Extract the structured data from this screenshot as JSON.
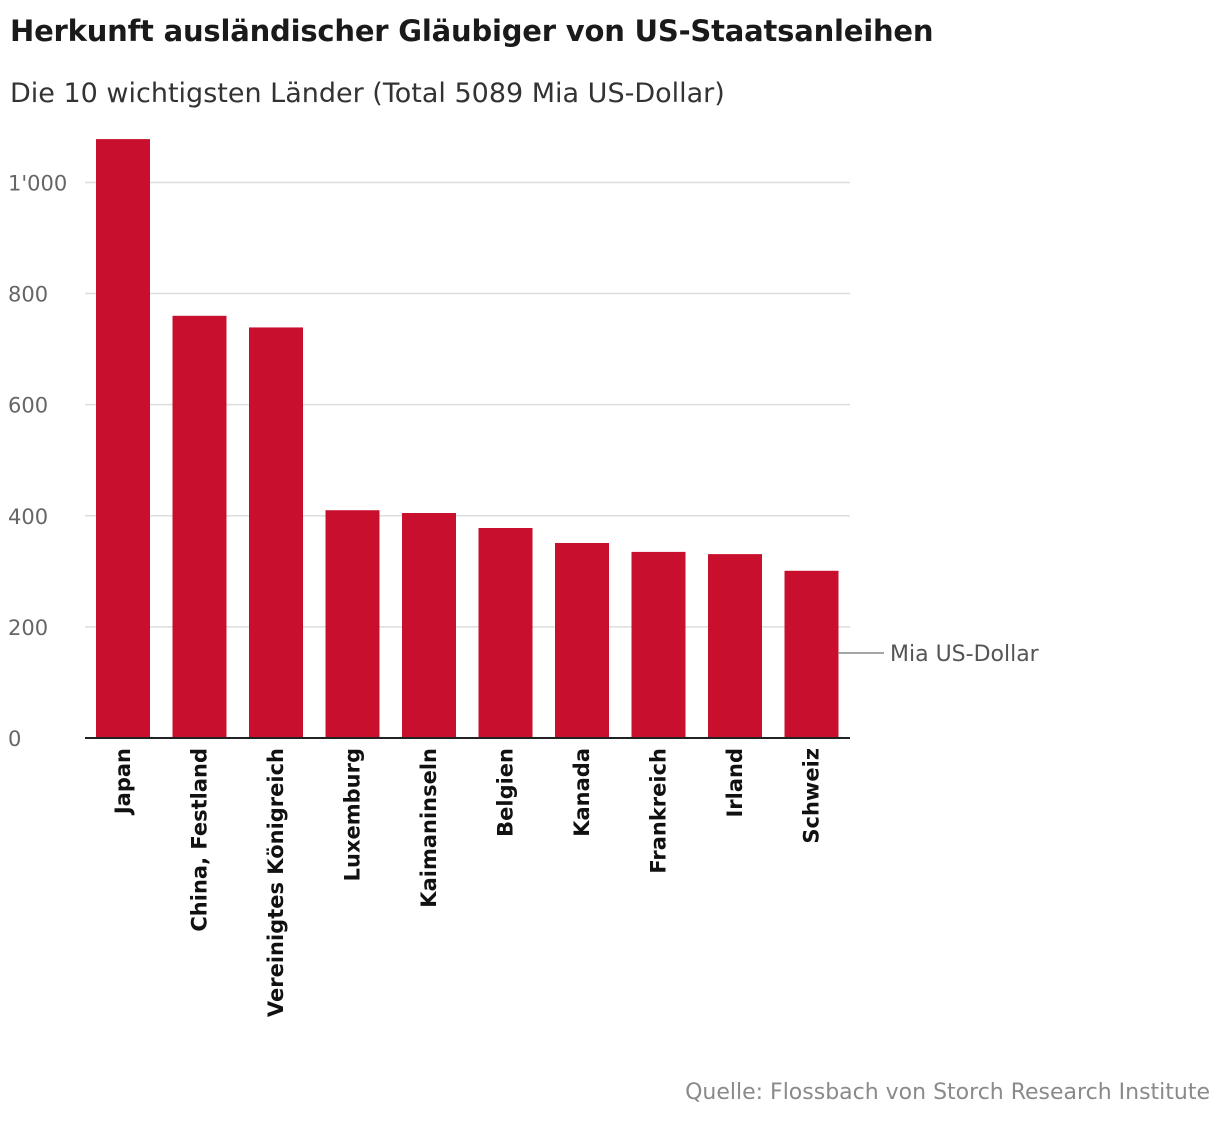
{
  "title": "Herkunft ausländischer Gläubiger von US-Staatsanleihen",
  "subtitle": "Die 10 wichtigsten Länder (Total 5089 Mia US-Dollar)",
  "source": "Quelle: Flossbach von Storch Research Institute",
  "colors": {
    "bar": "#c8102e",
    "grid": "#dddddd",
    "axis": "#222222"
  },
  "chart_data": {
    "type": "bar",
    "title": "Herkunft ausländischer Gläubiger von US-Staatsanleihen",
    "subtitle": "Die 10 wichtigsten Länder (Total 5089 Mia US-Dollar)",
    "categories": [
      "Japan",
      "China, Festland",
      "Vereinigtes Königreich",
      "Luxemburg",
      "Kaimaninseln",
      "Belgien",
      "Kanada",
      "Frankreich",
      "Irland",
      "Schweiz"
    ],
    "values": [
      1078,
      760,
      739,
      410,
      405,
      378,
      351,
      335,
      331,
      301
    ],
    "unit_label": "Mia US-Dollar",
    "xlabel": "",
    "ylabel": "Mia US-Dollar",
    "ylim": [
      0,
      1080
    ],
    "yticks": [
      0,
      200,
      400,
      600,
      800,
      1000
    ],
    "ytick_labels": [
      "0",
      "200",
      "400",
      "600",
      "800",
      "1'000"
    ],
    "grid": true
  }
}
